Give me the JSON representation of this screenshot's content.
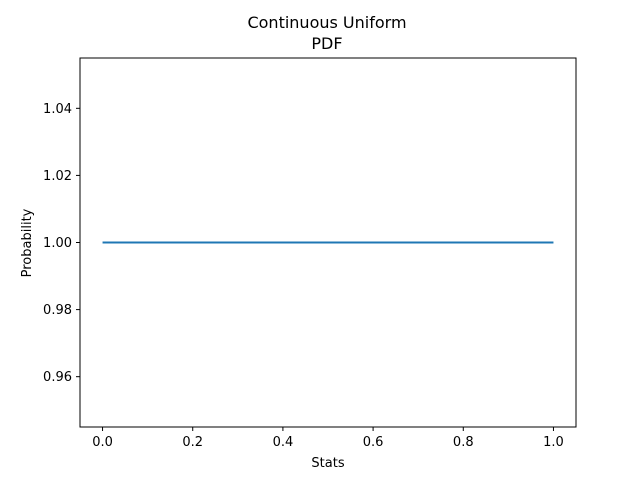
{
  "chart_data": {
    "type": "line",
    "title": "Continuous Uniform\nPDF",
    "title_lines": [
      "Continuous Uniform",
      "PDF"
    ],
    "xlabel": "Stats",
    "ylabel": "Probability",
    "xlim": [
      -0.05,
      1.05
    ],
    "ylim": [
      0.945,
      1.055
    ],
    "xticks": [
      0.0,
      0.2,
      0.4,
      0.6,
      0.8,
      1.0
    ],
    "xtick_labels": [
      "0.0",
      "0.2",
      "0.4",
      "0.6",
      "0.8",
      "1.0"
    ],
    "yticks": [
      0.96,
      0.98,
      1.0,
      1.02,
      1.04
    ],
    "ytick_labels": [
      "0.96",
      "0.98",
      "1.00",
      "1.02",
      "1.04"
    ],
    "grid": false,
    "series": [
      {
        "color": "#1f77b4",
        "x": [
          0.0,
          1.0
        ],
        "y": [
          1.0,
          1.0
        ]
      }
    ]
  }
}
